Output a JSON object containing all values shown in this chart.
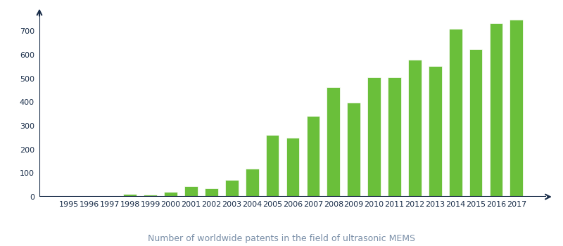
{
  "years": [
    "1995",
    "1996",
    "1997",
    "1998",
    "1999",
    "2000",
    "2001",
    "2002",
    "2003",
    "2004",
    "2005",
    "2006",
    "2007",
    "2008",
    "2009",
    "2010",
    "2011",
    "2012",
    "2013",
    "2014",
    "2015",
    "2016",
    "2017"
  ],
  "values": [
    2,
    2,
    2,
    12,
    8,
    22,
    45,
    35,
    72,
    118,
    262,
    250,
    342,
    463,
    397,
    505,
    505,
    580,
    553,
    710,
    625,
    735,
    748
  ],
  "bar_color": "#6abf3a",
  "background_color": "#ffffff",
  "axis_color": "#1a2e4a",
  "caption": "Number of worldwide patents in the field of ultrasonic MEMS",
  "caption_color": "#7a8fa8",
  "caption_fontsize": 9,
  "ylim": [
    0,
    780
  ],
  "yticks": [
    0,
    100,
    200,
    300,
    400,
    500,
    600,
    700
  ],
  "tick_color": "#1a2e4a",
  "tick_fontsize": 8,
  "bar_width": 0.65
}
